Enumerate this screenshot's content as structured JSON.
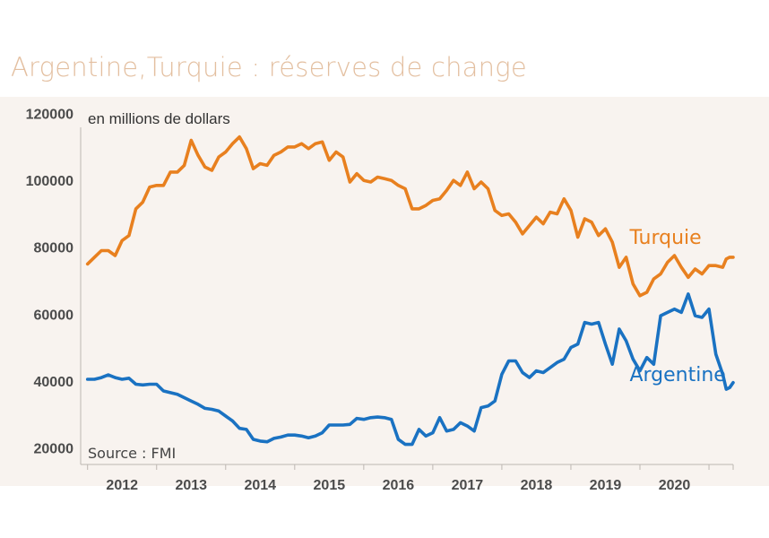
{
  "title": "Argentine,Turquie : réserves de change",
  "unit_note": "en millions de dollars",
  "source_note": "Source : FMI",
  "colors": {
    "turquie": "#e8801f",
    "argentine": "#1a72c2",
    "plot_bg": "#f8f3ef",
    "axis": "#bdb7b2",
    "title": "#e3bfa0"
  },
  "chart_data": {
    "type": "line",
    "title": "Argentine,Turquie : réserves de change",
    "ylabel": "en millions de dollars",
    "xlabel": "",
    "ylim": [
      15000,
      125000
    ],
    "yticks": [
      20000,
      40000,
      60000,
      80000,
      100000,
      120000
    ],
    "xlim": [
      2011.4,
      2020.85
    ],
    "xticks": [
      2012,
      2013,
      2014,
      2015,
      2016,
      2017,
      2018,
      2019,
      2020
    ],
    "grid": false,
    "legend": "inline",
    "series": [
      {
        "name": "Turquie",
        "color": "#e8801f",
        "label_position": [
          2019.35,
          81000
        ],
        "points": [
          [
            2011.5,
            75000
          ],
          [
            2011.6,
            77000
          ],
          [
            2011.7,
            79000
          ],
          [
            2011.8,
            79000
          ],
          [
            2011.9,
            77500
          ],
          [
            2012.0,
            82000
          ],
          [
            2012.1,
            83500
          ],
          [
            2012.2,
            91500
          ],
          [
            2012.3,
            93500
          ],
          [
            2012.4,
            98000
          ],
          [
            2012.5,
            98500
          ],
          [
            2012.6,
            98500
          ],
          [
            2012.7,
            102500
          ],
          [
            2012.8,
            102500
          ],
          [
            2012.9,
            104500
          ],
          [
            2013.0,
            112000
          ],
          [
            2013.1,
            107500
          ],
          [
            2013.2,
            104000
          ],
          [
            2013.3,
            103000
          ],
          [
            2013.4,
            107000
          ],
          [
            2013.5,
            108500
          ],
          [
            2013.6,
            111000
          ],
          [
            2013.7,
            113000
          ],
          [
            2013.8,
            109500
          ],
          [
            2013.9,
            103500
          ],
          [
            2014.0,
            105000
          ],
          [
            2014.1,
            104500
          ],
          [
            2014.2,
            107500
          ],
          [
            2014.3,
            108500
          ],
          [
            2014.4,
            110000
          ],
          [
            2014.5,
            110000
          ],
          [
            2014.6,
            111000
          ],
          [
            2014.7,
            109500
          ],
          [
            2014.8,
            111000
          ],
          [
            2014.9,
            111500
          ],
          [
            2015.0,
            106000
          ],
          [
            2015.1,
            108500
          ],
          [
            2015.2,
            107000
          ],
          [
            2015.3,
            99500
          ],
          [
            2015.4,
            102000
          ],
          [
            2015.5,
            100000
          ],
          [
            2015.6,
            99500
          ],
          [
            2015.7,
            101000
          ],
          [
            2015.8,
            100500
          ],
          [
            2015.9,
            100000
          ],
          [
            2016.0,
            98500
          ],
          [
            2016.1,
            97500
          ],
          [
            2016.2,
            91500
          ],
          [
            2016.3,
            91500
          ],
          [
            2016.4,
            92500
          ],
          [
            2016.5,
            94000
          ],
          [
            2016.6,
            94500
          ],
          [
            2016.7,
            97000
          ],
          [
            2016.8,
            100000
          ],
          [
            2016.9,
            98500
          ],
          [
            2017.0,
            102500
          ],
          [
            2017.1,
            97500
          ],
          [
            2017.2,
            99500
          ],
          [
            2017.3,
            97500
          ],
          [
            2017.4,
            91000
          ],
          [
            2017.5,
            89500
          ],
          [
            2017.6,
            90000
          ],
          [
            2017.7,
            87500
          ],
          [
            2017.8,
            84000
          ],
          [
            2017.9,
            86500
          ],
          [
            2018.0,
            89000
          ],
          [
            2018.1,
            87000
          ],
          [
            2018.2,
            90500
          ],
          [
            2018.3,
            90000
          ],
          [
            2018.4,
            94500
          ],
          [
            2018.5,
            91000
          ],
          [
            2018.6,
            83000
          ],
          [
            2018.7,
            88500
          ],
          [
            2018.8,
            87500
          ],
          [
            2018.9,
            83500
          ],
          [
            2019.0,
            85500
          ],
          [
            2019.1,
            81500
          ],
          [
            2019.2,
            74000
          ],
          [
            2019.3,
            77000
          ],
          [
            2019.4,
            69000
          ],
          [
            2019.5,
            65500
          ],
          [
            2019.6,
            66500
          ],
          [
            2019.7,
            70500
          ],
          [
            2019.8,
            72000
          ],
          [
            2019.9,
            75500
          ],
          [
            2020.0,
            77500
          ],
          [
            2020.1,
            74000
          ],
          [
            2020.2,
            71000
          ],
          [
            2020.3,
            73500
          ],
          [
            2020.4,
            72000
          ],
          [
            2020.5,
            74500
          ],
          [
            2020.6,
            74500
          ],
          [
            2020.7,
            74000
          ],
          [
            2020.75,
            76500
          ],
          [
            2020.8,
            77000
          ],
          [
            2020.85,
            77000
          ]
        ]
      },
      {
        "name": "Argentine",
        "color": "#1a72c2",
        "label_position": [
          2019.35,
          40000
        ],
        "points": [
          [
            2011.5,
            40500
          ],
          [
            2011.6,
            40500
          ],
          [
            2011.7,
            41000
          ],
          [
            2011.8,
            41800
          ],
          [
            2011.9,
            41000
          ],
          [
            2012.0,
            40500
          ],
          [
            2012.1,
            40800
          ],
          [
            2012.2,
            39000
          ],
          [
            2012.3,
            38800
          ],
          [
            2012.4,
            39000
          ],
          [
            2012.5,
            39000
          ],
          [
            2012.6,
            37000
          ],
          [
            2012.7,
            36500
          ],
          [
            2012.8,
            36000
          ],
          [
            2012.9,
            35000
          ],
          [
            2013.0,
            34000
          ],
          [
            2013.1,
            33000
          ],
          [
            2013.2,
            31800
          ],
          [
            2013.3,
            31500
          ],
          [
            2013.4,
            31000
          ],
          [
            2013.5,
            29500
          ],
          [
            2013.6,
            28000
          ],
          [
            2013.7,
            25800
          ],
          [
            2013.8,
            25500
          ],
          [
            2013.9,
            22500
          ],
          [
            2014.0,
            22000
          ],
          [
            2014.1,
            21800
          ],
          [
            2014.2,
            22800
          ],
          [
            2014.3,
            23200
          ],
          [
            2014.4,
            23800
          ],
          [
            2014.5,
            23800
          ],
          [
            2014.6,
            23500
          ],
          [
            2014.7,
            23000
          ],
          [
            2014.8,
            23500
          ],
          [
            2014.9,
            24500
          ],
          [
            2015.0,
            26800
          ],
          [
            2015.1,
            26800
          ],
          [
            2015.2,
            26800
          ],
          [
            2015.3,
            27000
          ],
          [
            2015.4,
            28800
          ],
          [
            2015.5,
            28500
          ],
          [
            2015.6,
            29000
          ],
          [
            2015.7,
            29200
          ],
          [
            2015.8,
            29000
          ],
          [
            2015.9,
            28500
          ],
          [
            2016.0,
            22500
          ],
          [
            2016.1,
            21000
          ],
          [
            2016.2,
            21000
          ],
          [
            2016.3,
            25500
          ],
          [
            2016.4,
            23500
          ],
          [
            2016.5,
            24500
          ],
          [
            2016.6,
            29000
          ],
          [
            2016.7,
            25000
          ],
          [
            2016.8,
            25500
          ],
          [
            2016.9,
            27500
          ],
          [
            2017.0,
            26500
          ],
          [
            2017.1,
            25000
          ],
          [
            2017.2,
            32000
          ],
          [
            2017.3,
            32500
          ],
          [
            2017.4,
            34000
          ],
          [
            2017.5,
            42000
          ],
          [
            2017.6,
            46000
          ],
          [
            2017.7,
            46000
          ],
          [
            2017.8,
            42500
          ],
          [
            2017.9,
            41000
          ],
          [
            2018.0,
            43000
          ],
          [
            2018.1,
            42500
          ],
          [
            2018.2,
            44000
          ],
          [
            2018.3,
            45500
          ],
          [
            2018.4,
            46500
          ],
          [
            2018.5,
            50000
          ],
          [
            2018.6,
            51000
          ],
          [
            2018.7,
            57500
          ],
          [
            2018.8,
            57000
          ],
          [
            2018.9,
            57500
          ],
          [
            2019.0,
            51000
          ],
          [
            2019.1,
            45000
          ],
          [
            2019.2,
            55500
          ],
          [
            2019.3,
            52000
          ],
          [
            2019.4,
            46500
          ],
          [
            2019.5,
            43000
          ],
          [
            2019.6,
            47000
          ],
          [
            2019.7,
            45000
          ],
          [
            2019.8,
            59500
          ],
          [
            2019.9,
            60500
          ],
          [
            2020.0,
            61500
          ],
          [
            2020.1,
            60500
          ],
          [
            2020.2,
            66000
          ],
          [
            2020.3,
            59500
          ],
          [
            2020.4,
            59000
          ],
          [
            2020.5,
            61500
          ],
          [
            2020.6,
            48000
          ],
          [
            2020.7,
            42000
          ],
          [
            2020.75,
            37500
          ],
          [
            2020.8,
            38000
          ],
          [
            2020.85,
            39500
          ]
        ]
      }
    ]
  }
}
